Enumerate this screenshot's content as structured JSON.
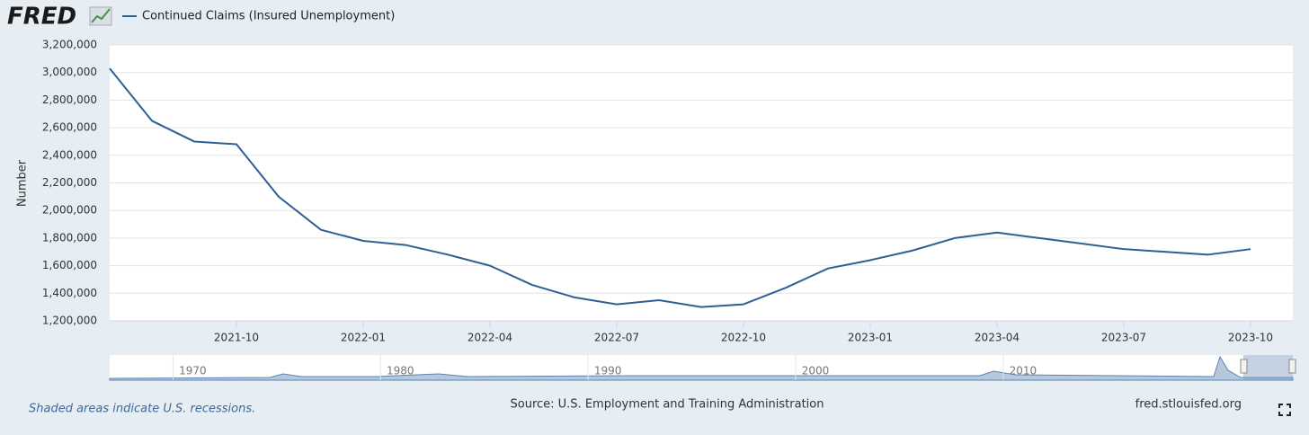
{
  "chart_data": {
    "type": "line",
    "brand": "FRED",
    "y_label": "Number",
    "note": "Shaded areas indicate U.S. recessions.",
    "source": "Source: U.S. Employment and Training Administration",
    "site": "fred.stlouisfed.org",
    "x": [
      "2021-07",
      "2021-08",
      "2021-09",
      "2021-10",
      "2021-11",
      "2021-12",
      "2022-01",
      "2022-02",
      "2022-03",
      "2022-04",
      "2022-05",
      "2022-06",
      "2022-07",
      "2022-08",
      "2022-09",
      "2022-10",
      "2022-11",
      "2022-12",
      "2023-01",
      "2023-02",
      "2023-03",
      "2023-04",
      "2023-05",
      "2023-06",
      "2023-07",
      "2023-08",
      "2023-09",
      "2023-10"
    ],
    "series": [
      {
        "name": "Continued Claims (Insured Unemployment)",
        "color": "#2f5f93",
        "values": [
          3030000,
          2650000,
          2500000,
          2480000,
          2100000,
          1860000,
          1780000,
          1750000,
          1680000,
          1600000,
          1460000,
          1370000,
          1320000,
          1350000,
          1300000,
          1320000,
          1440000,
          1580000,
          1640000,
          1710000,
          1800000,
          1840000,
          1800000,
          1760000,
          1720000,
          1700000,
          1680000,
          1720000
        ]
      }
    ],
    "xlim": [
      "2021-07",
      "2023-11"
    ],
    "xticks": [
      "2021-10",
      "2022-01",
      "2022-04",
      "2022-07",
      "2022-10",
      "2023-01",
      "2023-04",
      "2023-07",
      "2023-10"
    ],
    "ylim": [
      1200000,
      3200000
    ],
    "yticks": [
      {
        "value": 1200000,
        "label": "1,200,000"
      },
      {
        "value": 1400000,
        "label": "1,400,000"
      },
      {
        "value": 1600000,
        "label": "1,600,000"
      },
      {
        "value": 1800000,
        "label": "1,800,000"
      },
      {
        "value": 2000000,
        "label": "2,000,000"
      },
      {
        "value": 2200000,
        "label": "2,200,000"
      },
      {
        "value": 2400000,
        "label": "2,400,000"
      },
      {
        "value": 2600000,
        "label": "2,600,000"
      },
      {
        "value": 2800000,
        "label": "2,800,000"
      },
      {
        "value": 3000000,
        "label": "3,000,000"
      },
      {
        "value": 3200000,
        "label": "3,200,000"
      }
    ],
    "grid": true,
    "navigator": {
      "xlim": [
        1966,
        2023
      ],
      "xticks": [
        1970,
        1980,
        1990,
        2000,
        2010
      ]
    }
  }
}
